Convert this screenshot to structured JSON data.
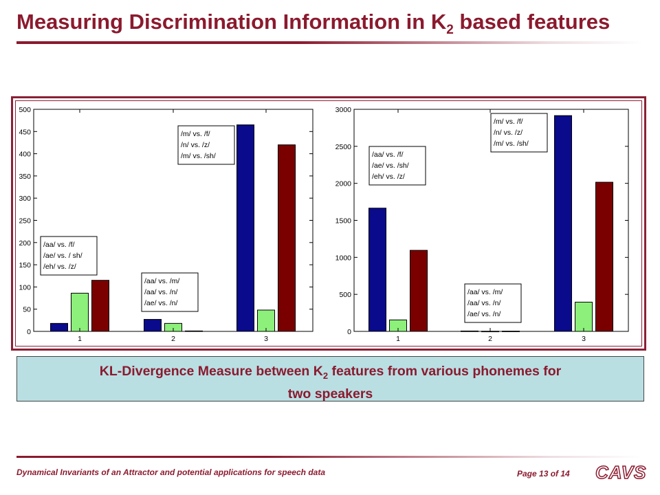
{
  "slide": {
    "title_main": "Measuring Discrimination Information in K",
    "title_sub": "2",
    "title_tail": " based features",
    "caption_a": "KL-Divergence Measure between K",
    "caption_sub": "2",
    "caption_b": " features from various phonemes for",
    "caption_line2": "two speakers",
    "footer_left": "Dynamical Invariants of an Attractor and potential applications for speech data",
    "footer_page": "Page 13 of 14",
    "logo_text": "CAVS"
  },
  "colors": {
    "accent": "#8b1a2e",
    "bar_blue": "#0a0a8c",
    "bar_green": "#8cf07a",
    "bar_red": "#7a0000",
    "caption_bg": "#b9dfe3"
  },
  "chart_data": [
    {
      "type": "bar",
      "categories": [
        "1",
        "2",
        "3"
      ],
      "ylim": [
        0,
        500
      ],
      "yticks": [
        0,
        50,
        100,
        150,
        200,
        250,
        300,
        350,
        400,
        450,
        500
      ],
      "series": [
        {
          "values": [
            18,
            27,
            465
          ],
          "color": "#0a0a8c"
        },
        {
          "values": [
            86,
            18,
            48
          ],
          "color": "#8cf07a"
        },
        {
          "values": [
            115,
            1,
            420
          ],
          "color": "#7a0000"
        }
      ],
      "annotations": [
        {
          "category": "1",
          "lines": [
            "/aa/ vs. /f/",
            "/ae/ vs. / sh/",
            "/eh/ vs. /z/"
          ]
        },
        {
          "category": "2",
          "lines": [
            "/aa/ vs. /m/",
            "/aa/ vs. /n/",
            "/ae/ vs. /n/"
          ]
        },
        {
          "category": "3",
          "lines": [
            "/m/ vs. /f/",
            "/n/ vs. /z/",
            "/m/ vs. /sh/"
          ]
        }
      ]
    },
    {
      "type": "bar",
      "categories": [
        "1",
        "2",
        "3"
      ],
      "ylim": [
        0,
        3000
      ],
      "yticks": [
        0,
        500,
        1000,
        1500,
        2000,
        2500,
        3000
      ],
      "series": [
        {
          "values": [
            1665,
            5,
            2915
          ],
          "color": "#0a0a8c"
        },
        {
          "values": [
            155,
            2,
            395
          ],
          "color": "#8cf07a"
        },
        {
          "values": [
            1095,
            3,
            2015
          ],
          "color": "#7a0000"
        }
      ],
      "annotations": [
        {
          "category": "1",
          "lines": [
            "/aa/ vs. /f/",
            "/ae/ vs. /sh/",
            "/eh/ vs. /z/"
          ]
        },
        {
          "category": "2",
          "lines": [
            "/aa/ vs. /m/",
            "/aa/ vs. /n/",
            "/ae/ vs. /n/"
          ]
        },
        {
          "category": "3",
          "lines": [
            "/m/ vs. /f/",
            "/n/ vs. /z/",
            "/m/ vs. /sh/"
          ]
        }
      ]
    }
  ]
}
